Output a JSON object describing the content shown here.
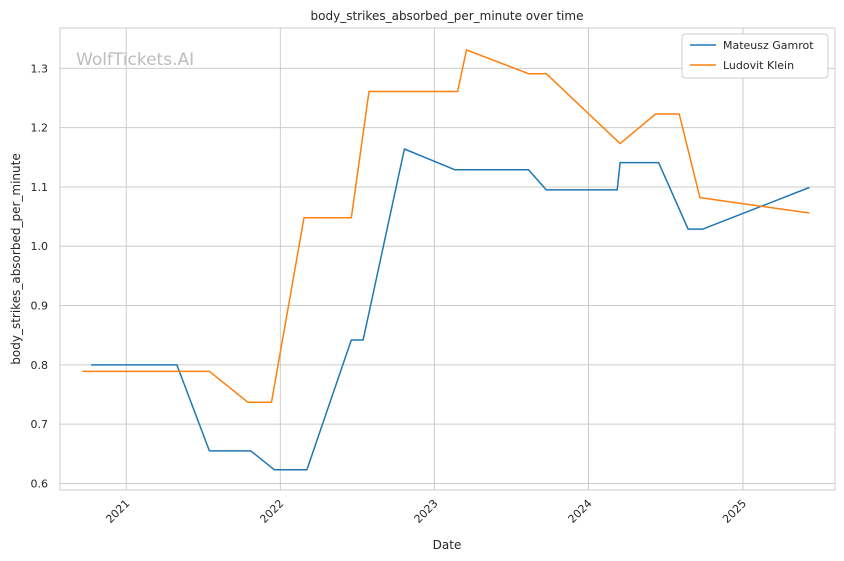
{
  "chart_data": {
    "type": "line",
    "title": "body_strikes_absorbed_per_minute over time",
    "xlabel": "Date",
    "ylabel": "body_strikes_absorbed_per_minute",
    "watermark": "WolfTickets.AI",
    "x_ticks": [
      "2021",
      "2022",
      "2023",
      "2024",
      "2025"
    ],
    "y_ticks": [
      "0.6",
      "0.7",
      "0.8",
      "0.9",
      "1.0",
      "1.1",
      "1.2",
      "1.3"
    ],
    "xlim": [
      "2020-07-28",
      "2025-08-07"
    ],
    "ylim": [
      0.589,
      1.368
    ],
    "grid": true,
    "legend_position": "top-right",
    "colors": {
      "Mateusz Gamrot": "#1f77b4",
      "Ludovit Klein": "#ff7f0e"
    },
    "series": [
      {
        "name": "Mateusz Gamrot",
        "points": [
          [
            "2020-10-10",
            0.8
          ],
          [
            "2021-05-01",
            0.8
          ],
          [
            "2021-07-17",
            0.655
          ],
          [
            "2021-10-23",
            0.655
          ],
          [
            "2021-12-18",
            0.623
          ],
          [
            "2022-03-05",
            0.623
          ],
          [
            "2022-06-18",
            0.842
          ],
          [
            "2022-07-16",
            0.842
          ],
          [
            "2022-10-22",
            1.164
          ],
          [
            "2023-02-18",
            1.129
          ],
          [
            "2023-08-12",
            1.129
          ],
          [
            "2023-09-23",
            1.095
          ],
          [
            "2024-03-09",
            1.095
          ],
          [
            "2024-03-16",
            1.141
          ],
          [
            "2024-06-15",
            1.141
          ],
          [
            "2024-08-24",
            1.029
          ],
          [
            "2024-09-28",
            1.029
          ],
          [
            "2025-06-07",
            1.099
          ]
        ]
      },
      {
        "name": "Ludovit Klein",
        "points": [
          [
            "2020-09-19",
            0.789
          ],
          [
            "2021-07-17",
            0.789
          ],
          [
            "2021-10-16",
            0.737
          ],
          [
            "2021-12-11",
            0.737
          ],
          [
            "2022-02-26",
            1.048
          ],
          [
            "2022-06-18",
            1.048
          ],
          [
            "2022-07-30",
            1.261
          ],
          [
            "2023-02-25",
            1.261
          ],
          [
            "2023-03-18",
            1.331
          ],
          [
            "2023-08-12",
            1.291
          ],
          [
            "2023-09-23",
            1.291
          ],
          [
            "2024-03-16",
            1.173
          ],
          [
            "2024-06-08",
            1.223
          ],
          [
            "2024-08-03",
            1.223
          ],
          [
            "2024-09-21",
            1.082
          ],
          [
            "2025-06-07",
            1.056
          ]
        ]
      }
    ]
  }
}
